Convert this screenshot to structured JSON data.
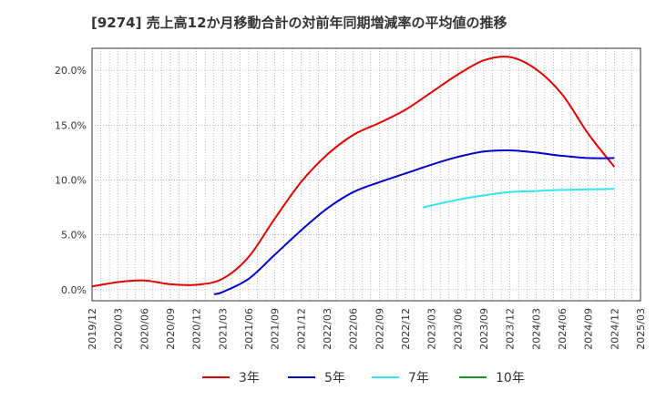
{
  "chart_data": {
    "type": "line",
    "title": "[9274]  売上高12か月移動合計の対前年同期増減率の平均値の推移",
    "xlabel": "",
    "ylabel": "",
    "x_ticks": [
      "2019/12",
      "2020/03",
      "2020/06",
      "2020/09",
      "2020/12",
      "2021/03",
      "2021/06",
      "2021/09",
      "2021/12",
      "2022/03",
      "2022/06",
      "2022/09",
      "2022/12",
      "2023/03",
      "2023/06",
      "2023/09",
      "2023/12",
      "2024/03",
      "2024/06",
      "2024/09",
      "2024/12",
      "2025/03"
    ],
    "y_ticks": [
      "0.0%",
      "5.0%",
      "10.0%",
      "15.0%",
      "20.0%"
    ],
    "ylim": [
      -1.0,
      22.0
    ],
    "grid": true,
    "legend_position": "bottom",
    "series": [
      {
        "name": "3年",
        "color": "#e00000",
        "points": [
          [
            "2019/12",
            0.3
          ],
          [
            "2020/03",
            0.7
          ],
          [
            "2020/06",
            0.85
          ],
          [
            "2020/09",
            0.5
          ],
          [
            "2020/12",
            0.45
          ],
          [
            "2021/03",
            1.0
          ],
          [
            "2021/06",
            3.0
          ],
          [
            "2021/09",
            6.5
          ],
          [
            "2021/12",
            9.8
          ],
          [
            "2022/03",
            12.3
          ],
          [
            "2022/06",
            14.1
          ],
          [
            "2022/09",
            15.2
          ],
          [
            "2022/12",
            16.4
          ],
          [
            "2023/03",
            18.0
          ],
          [
            "2023/06",
            19.6
          ],
          [
            "2023/09",
            20.9
          ],
          [
            "2023/12",
            21.2
          ],
          [
            "2024/03",
            20.1
          ],
          [
            "2024/06",
            17.8
          ],
          [
            "2024/09",
            14.2
          ],
          [
            "2024/12",
            11.2
          ]
        ]
      },
      {
        "name": "5年",
        "color": "#0000cc",
        "points": [
          [
            "2021/02",
            -0.4
          ],
          [
            "2021/03",
            -0.2
          ],
          [
            "2021/06",
            1.0
          ],
          [
            "2021/09",
            3.2
          ],
          [
            "2021/12",
            5.4
          ],
          [
            "2022/03",
            7.4
          ],
          [
            "2022/06",
            8.9
          ],
          [
            "2022/09",
            9.8
          ],
          [
            "2022/12",
            10.6
          ],
          [
            "2023/03",
            11.4
          ],
          [
            "2023/06",
            12.1
          ],
          [
            "2023/09",
            12.6
          ],
          [
            "2023/12",
            12.7
          ],
          [
            "2024/03",
            12.5
          ],
          [
            "2024/06",
            12.2
          ],
          [
            "2024/09",
            12.0
          ],
          [
            "2024/12",
            12.0
          ]
        ]
      },
      {
        "name": "7年",
        "color": "#33e5ee",
        "points": [
          [
            "2023/02",
            7.5
          ],
          [
            "2023/06",
            8.2
          ],
          [
            "2023/09",
            8.6
          ],
          [
            "2023/12",
            8.9
          ],
          [
            "2024/03",
            9.0
          ],
          [
            "2024/06",
            9.1
          ],
          [
            "2024/09",
            9.15
          ],
          [
            "2024/12",
            9.2
          ]
        ]
      },
      {
        "name": "10年",
        "color": "#228b22",
        "points": []
      }
    ]
  }
}
